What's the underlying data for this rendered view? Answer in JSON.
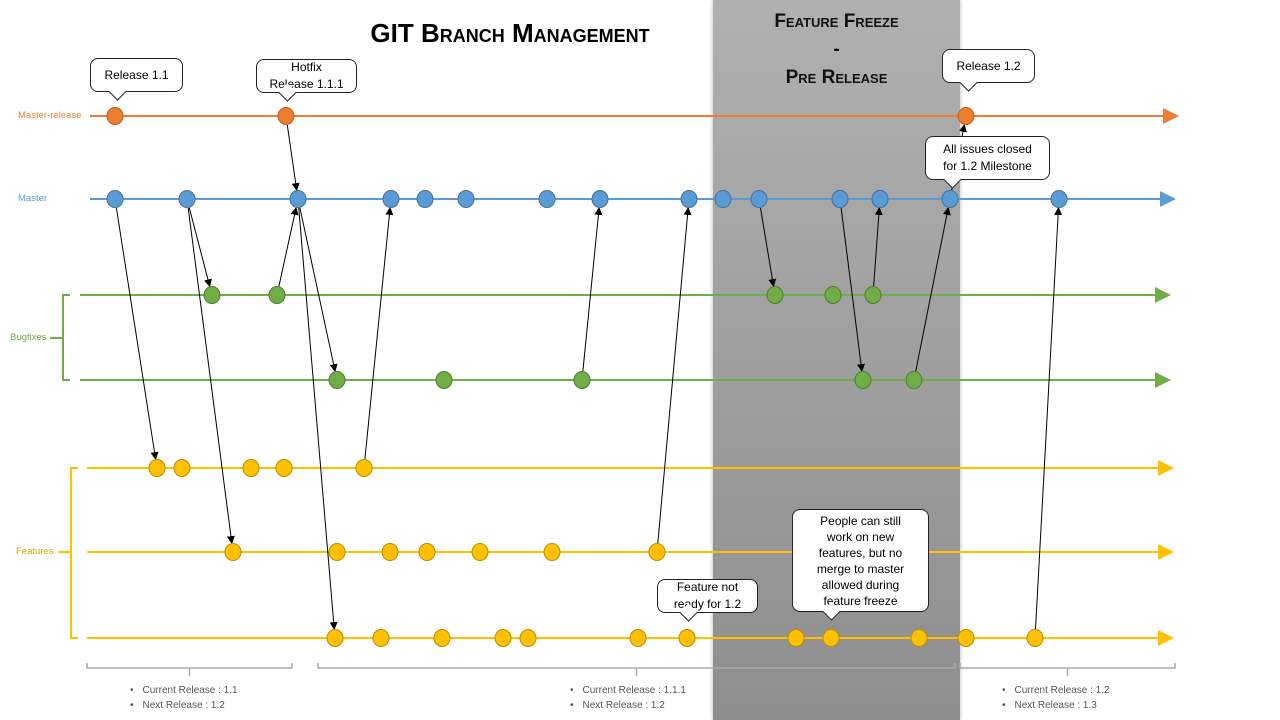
{
  "title": "GIT Branch Management",
  "freeze": {
    "line1": "Feature Freeze",
    "line2": "-",
    "line3": "Pre Release"
  },
  "colors": {
    "master_release": "#ED7D31",
    "master": "#5B9BD5",
    "bugfixes": "#70AD47",
    "features": "#FFC000",
    "freeze": "#a0a0a0"
  },
  "branch_labels": {
    "master_release": "Master-release",
    "master": "Master",
    "bugfixes": "Bugfixes",
    "features": "Features"
  },
  "callouts": {
    "release_1_1": "Release 1.1",
    "hotfix_line1": "Hotfix",
    "hotfix_line2": "Release 1.1.1",
    "release_1_2": "Release 1.2",
    "issues_line1": "All issues closed",
    "issues_line2": "for 1.2 Milestone",
    "not_ready_line1": "Feature not",
    "not_ready_line2": "ready for 1.2",
    "people_line1": "People can still",
    "people_line2": "work on new",
    "people_line3": "features, but no",
    "people_line4": "merge to master",
    "people_line5": "allowed during",
    "people_line6": "feature freeze"
  },
  "periods": [
    {
      "current": "Current Release : 1.1",
      "next": "Next Release : 1.2"
    },
    {
      "current": "Current Release : 1.1.1",
      "next": "Next Release : 1.2"
    },
    {
      "current": "Current Release : 1.2",
      "next": "Next Release : 1.3"
    }
  ]
}
